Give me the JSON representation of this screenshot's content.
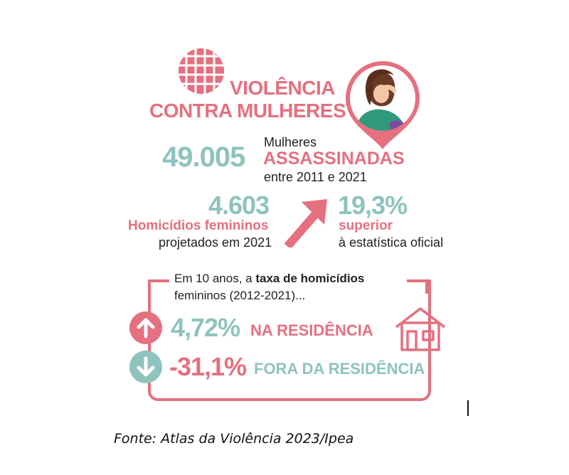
{
  "title": {
    "line1": "VIOLÊNCIA",
    "line2": "CONTRA MULHERES"
  },
  "stat1": {
    "number": "49.005",
    "label_top": "Mulheres",
    "label_highlight": "ASSASSINADAS",
    "label_bottom": "entre 2011 e 2021"
  },
  "stat2": {
    "number": "4.603",
    "label_highlight": "Homicídios femininos",
    "label_bottom": "projetados em 2021"
  },
  "stat3": {
    "number": "19,3%",
    "label_highlight": "superior",
    "label_bottom": "à estatística oficial"
  },
  "box": {
    "intro_prefix": "Em 10 anos, a ",
    "intro_bold": "taxa de homicídios",
    "intro_line2": "femininos (2012-2021)...",
    "row_up": {
      "value": "4,72%",
      "label": "NA RESIDÊNCIA",
      "icon": "arrow-up-icon"
    },
    "row_down": {
      "value": "-31,1%",
      "label": "FORA DA RESIDÊNCIA",
      "icon": "arrow-down-icon"
    }
  },
  "caption": "Fonte: Atlas da Violência 2023/Ipea",
  "colors": {
    "pink": "#e5707f",
    "teal": "#8fc3bd",
    "text": "#222222"
  }
}
